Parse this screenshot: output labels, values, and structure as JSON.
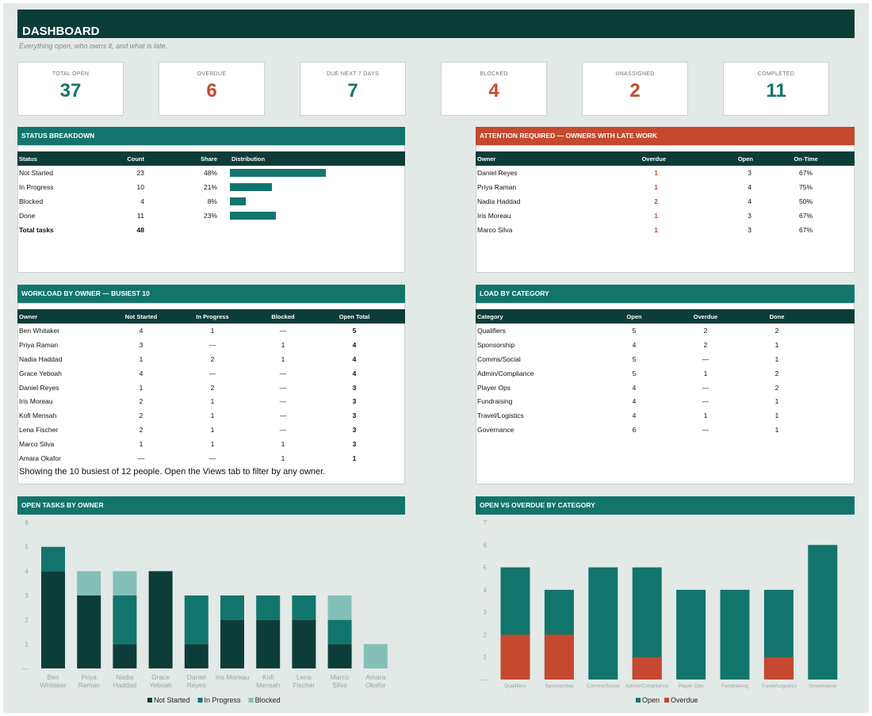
{
  "header": {
    "title": "DASHBOARD",
    "subtitle": "Everything open, who owns it, and what is late."
  },
  "colors": {
    "dark": "#0d3d38",
    "teal": "#12756d",
    "light": "#82c0b7",
    "red": "#c4492e"
  },
  "kpis": [
    {
      "label": "TOTAL OPEN",
      "value": "37",
      "color": "#12756d"
    },
    {
      "label": "OVERDUE",
      "value": "6",
      "color": "#c4492e"
    },
    {
      "label": "DUE NEXT 7 DAYS",
      "value": "7",
      "color": "#12756d"
    },
    {
      "label": "BLOCKED",
      "value": "4",
      "color": "#c4492e"
    },
    {
      "label": "UNASSIGNED",
      "value": "2",
      "color": "#c4492e"
    },
    {
      "label": "COMPLETED",
      "value": "11",
      "color": "#12756d"
    }
  ],
  "status": {
    "title": "STATUS BREAKDOWN",
    "headers": [
      "Status",
      "Count",
      "Share",
      "Distribution"
    ],
    "rows": [
      {
        "status": "Not Started",
        "count": "23",
        "share": "48%",
        "fraction": 0.48
      },
      {
        "status": "In Progress",
        "count": "10",
        "share": "21%",
        "fraction": 0.21
      },
      {
        "status": "Blocked",
        "count": "4",
        "share": "8%",
        "fraction": 0.08
      },
      {
        "status": "Done",
        "count": "11",
        "share": "23%",
        "fraction": 0.23
      }
    ],
    "total_label": "Total tasks",
    "total_value": "48"
  },
  "attention": {
    "title": "ATTENTION REQUIRED — OWNERS WITH LATE WORK",
    "headers": [
      "Owner",
      "Overdue",
      "Open",
      "On-Time"
    ],
    "rows": [
      [
        "Daniel Reyes",
        "1",
        "3",
        "67%"
      ],
      [
        "Priya Raman",
        "1",
        "4",
        "75%"
      ],
      [
        "Nadia Haddad",
        "2",
        "4",
        "50%"
      ],
      [
        "Iris Moreau",
        "1",
        "3",
        "67%"
      ],
      [
        "Marco Silva",
        "1",
        "3",
        "67%"
      ]
    ]
  },
  "workload": {
    "title": "WORKLOAD BY OWNER — BUSIEST 10",
    "headers": [
      "Owner",
      "Not Started",
      "In Progress",
      "Blocked",
      "Open Total"
    ],
    "rows": [
      [
        "Ben Whitaker",
        "4",
        "1",
        "—",
        "5"
      ],
      [
        "Priya Raman",
        "3",
        "—",
        "1",
        "4"
      ],
      [
        "Nadia Haddad",
        "1",
        "2",
        "1",
        "4"
      ],
      [
        "Grace Yeboah",
        "4",
        "—",
        "—",
        "4"
      ],
      [
        "Daniel Reyes",
        "1",
        "2",
        "—",
        "3"
      ],
      [
        "Iris Moreau",
        "2",
        "1",
        "—",
        "3"
      ],
      [
        "Kofi Mensah",
        "2",
        "1",
        "—",
        "3"
      ],
      [
        "Lena Fischer",
        "2",
        "1",
        "—",
        "3"
      ],
      [
        "Marco Silva",
        "1",
        "1",
        "1",
        "3"
      ],
      [
        "Amara Okafor",
        "—",
        "—",
        "1",
        "1"
      ]
    ],
    "note": "Showing the 10 busiest of 12 people. Open the Views tab to filter by any owner."
  },
  "category": {
    "title": "LOAD BY CATEGORY",
    "headers": [
      "Category",
      "Open",
      "Overdue",
      "Done"
    ],
    "rows": [
      [
        "Qualifiers",
        "5",
        "2",
        "2"
      ],
      [
        "Sponsorship",
        "4",
        "2",
        "1"
      ],
      [
        "Comms/Social",
        "5",
        "—",
        "1"
      ],
      [
        "Admin/Compliance",
        "5",
        "1",
        "2"
      ],
      [
        "Player Ops",
        "4",
        "—",
        "2"
      ],
      [
        "Fundraising",
        "4",
        "—",
        "1"
      ],
      [
        "Travel/Logistics",
        "4",
        "1",
        "1"
      ],
      [
        "Governance",
        "6",
        "—",
        "1"
      ]
    ]
  },
  "chart_titles": {
    "owner": "OPEN TASKS BY OWNER",
    "category": "OPEN VS OVERDUE BY CATEGORY"
  },
  "chart_data": [
    {
      "type": "bar",
      "stacked": true,
      "categories": [
        [
          "Ben",
          "Whitaker"
        ],
        [
          "Priya",
          "Raman"
        ],
        [
          "Nadia",
          "Haddad"
        ],
        [
          "Grace",
          "Yeboah"
        ],
        [
          "Daniel",
          "Reyes"
        ],
        [
          "Iris Moreau"
        ],
        [
          "Kofi",
          "Mensah"
        ],
        [
          "Lena",
          "Fischer"
        ],
        [
          "Marco",
          "Silva"
        ],
        [
          "Amara",
          "Okafor"
        ]
      ],
      "series": [
        {
          "name": "Not Started",
          "color": "#0d3d38",
          "values": [
            4,
            3,
            1,
            4,
            1,
            2,
            2,
            2,
            1,
            0
          ]
        },
        {
          "name": "In Progress",
          "color": "#12756d",
          "values": [
            1,
            0,
            2,
            0,
            2,
            1,
            1,
            1,
            1,
            0
          ]
        },
        {
          "name": "Blocked",
          "color": "#82c0b7",
          "values": [
            0,
            1,
            1,
            0,
            0,
            0,
            0,
            0,
            1,
            1
          ]
        }
      ],
      "ylim": [
        0,
        6
      ],
      "yticks": [
        "—",
        "1",
        "2",
        "3",
        "4",
        "5",
        "6"
      ],
      "legend": "bottom"
    },
    {
      "type": "bar",
      "overlap": true,
      "categories": [
        "Qualifiers",
        "Sponsorship",
        "Comms/Social",
        "Admin/Compliance",
        "Player Ops",
        "Fundraising",
        "Travel/Logistics",
        "Governance"
      ],
      "series": [
        {
          "name": "Open",
          "color": "#12756d",
          "values": [
            5,
            4,
            5,
            5,
            4,
            4,
            4,
            6
          ]
        },
        {
          "name": "Overdue",
          "color": "#c4492e",
          "values": [
            2,
            2,
            0,
            1,
            0,
            0,
            1,
            0
          ]
        }
      ],
      "ylim": [
        0,
        7
      ],
      "yticks": [
        "—",
        "1",
        "2",
        "3",
        "4",
        "5",
        "6",
        "7"
      ],
      "legend": "bottom"
    }
  ]
}
